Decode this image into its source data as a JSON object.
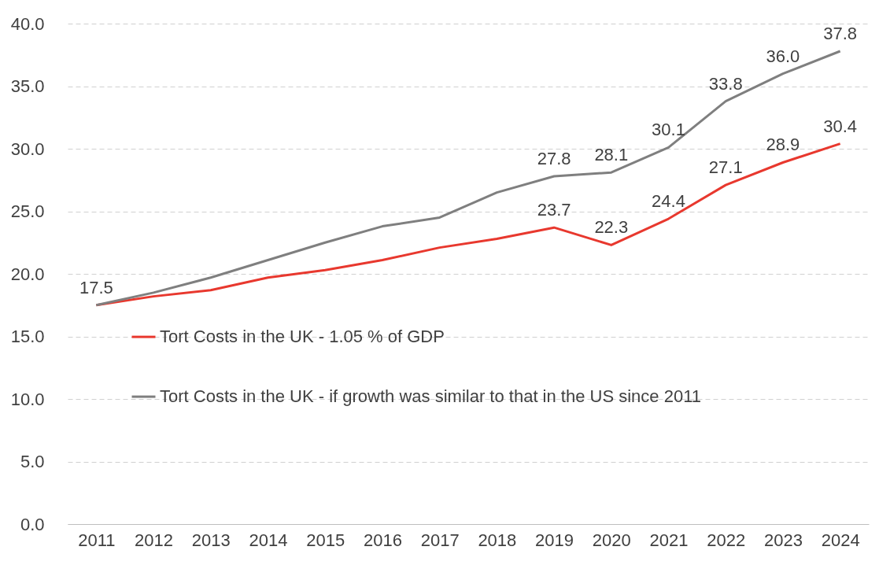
{
  "chart_data": {
    "type": "line",
    "categories": [
      "2011",
      "2012",
      "2013",
      "2014",
      "2015",
      "2016",
      "2017",
      "2018",
      "2019",
      "2020",
      "2021",
      "2022",
      "2023",
      "2024"
    ],
    "series": [
      {
        "name": "Tort Costs in the UK - 1.05 % of GDP",
        "color": "#e8382e",
        "values": [
          17.5,
          18.2,
          18.7,
          19.7,
          20.3,
          21.1,
          22.1,
          22.8,
          23.7,
          22.3,
          24.4,
          27.1,
          28.9,
          30.4
        ],
        "value_labels": [
          "17.5",
          null,
          null,
          null,
          null,
          null,
          null,
          null,
          "23.7",
          "22.3",
          "24.4",
          "27.1",
          "28.9",
          "30.4"
        ]
      },
      {
        "name": "Tort Costs in the UK - if growth was similar to that in the US since 2011",
        "color": "#7f7f7f",
        "values": [
          17.5,
          18.5,
          19.7,
          21.1,
          22.5,
          23.8,
          24.5,
          26.5,
          27.8,
          28.1,
          30.1,
          33.8,
          36.0,
          37.8
        ],
        "value_labels": [
          null,
          null,
          null,
          null,
          null,
          null,
          null,
          null,
          "27.8",
          "28.1",
          "30.1",
          "33.8",
          "36.0",
          "37.8"
        ]
      }
    ],
    "ylim": [
      0,
      40
    ],
    "yticks": [
      {
        "value": 0,
        "label": "0.0"
      },
      {
        "value": 5,
        "label": "5.0"
      },
      {
        "value": 10,
        "label": "10.0"
      },
      {
        "value": 15,
        "label": "15.0"
      },
      {
        "value": 20,
        "label": "20.0"
      },
      {
        "value": 25,
        "label": "25.0"
      },
      {
        "value": 30,
        "label": "30.0"
      },
      {
        "value": 35,
        "label": "35.0"
      },
      {
        "value": 40,
        "label": "40.0"
      }
    ],
    "grid": "y",
    "legend": "left"
  }
}
